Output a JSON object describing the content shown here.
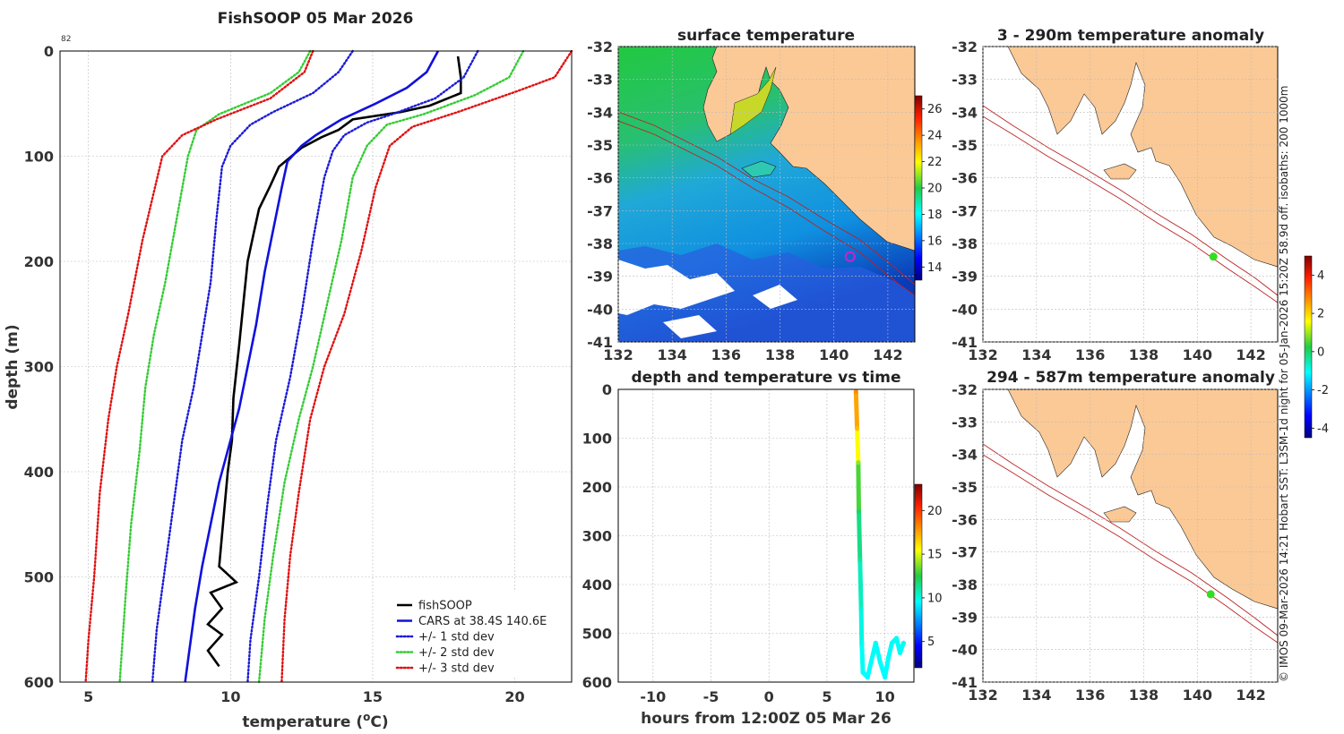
{
  "credit": "© IMOS 09-Mar-2026 14:21 Hobart SST: L3SM-1d night for 05-Jan-2026 15:20Z 58.9d off. isobaths: 200  1000m",
  "colors": {
    "fishsoop": "#000000",
    "cars": "#1010dd",
    "std1": "#1a1ad8",
    "std2": "#33cc33",
    "std3": "#e01010",
    "land": "#fbc996",
    "marker_ring": "#cc22cc",
    "marker_dot": "#33dd22"
  },
  "chart_data": [
    {
      "id": "profile",
      "type": "line",
      "title": "FishSOOP 05 Mar 2026",
      "xlabel": "temperature (°C)",
      "ylabel": "depth (m)",
      "xlim": [
        4,
        22
      ],
      "ylim": [
        600,
        0
      ],
      "xticks": [
        5,
        10,
        15,
        20
      ],
      "yticks": [
        0,
        100,
        200,
        300,
        400,
        500,
        600
      ],
      "annotation": "82",
      "grid": true,
      "legend": "bottom-right",
      "series": [
        {
          "name": "fishSOOP",
          "style": "solid",
          "key": "fishsoop",
          "points": [
            [
              18.0,
              5
            ],
            [
              18.1,
              25
            ],
            [
              18.1,
              40
            ],
            [
              17.0,
              52
            ],
            [
              16.0,
              58
            ],
            [
              14.3,
              65
            ],
            [
              13.8,
              75
            ],
            [
              13.2,
              82
            ],
            [
              12.5,
              92
            ],
            [
              11.7,
              110
            ],
            [
              11.4,
              128
            ],
            [
              11.0,
              150
            ],
            [
              10.8,
              175
            ],
            [
              10.6,
              200
            ],
            [
              10.45,
              240
            ],
            [
              10.3,
              280
            ],
            [
              10.1,
              330
            ],
            [
              10.05,
              370
            ],
            [
              9.9,
              400
            ],
            [
              9.8,
              430
            ],
            [
              9.7,
              460
            ],
            [
              9.6,
              490
            ],
            [
              10.2,
              505
            ],
            [
              9.3,
              515
            ],
            [
              9.7,
              530
            ],
            [
              9.2,
              545
            ],
            [
              9.7,
              555
            ],
            [
              9.2,
              570
            ],
            [
              9.6,
              585
            ]
          ]
        },
        {
          "name": "CARS at 38.4S 140.6E",
          "style": "solid",
          "key": "cars",
          "points": [
            [
              17.3,
              0
            ],
            [
              16.9,
              20
            ],
            [
              16.2,
              35
            ],
            [
              15.1,
              50
            ],
            [
              13.9,
              65
            ],
            [
              13.0,
              80
            ],
            [
              12.5,
              90
            ],
            [
              12.0,
              105
            ],
            [
              11.8,
              130
            ],
            [
              11.5,
              170
            ],
            [
              11.2,
              210
            ],
            [
              10.9,
              260
            ],
            [
              10.6,
              300
            ],
            [
              10.3,
              340
            ],
            [
              10.0,
              370
            ],
            [
              9.6,
              410
            ],
            [
              9.3,
              450
            ],
            [
              9.0,
              490
            ],
            [
              8.75,
              530
            ],
            [
              8.55,
              570
            ],
            [
              8.4,
              600
            ]
          ]
        },
        {
          "name": "+/- 1 std dev",
          "style": "dotted",
          "key": "std1",
          "points": [
            [
              18.7,
              0
            ],
            [
              18.2,
              25
            ],
            [
              17.2,
              45
            ],
            [
              15.7,
              60
            ],
            [
              14.8,
              68
            ],
            [
              14.0,
              80
            ],
            [
              13.6,
              95
            ],
            [
              13.3,
              120
            ],
            [
              12.9,
              180
            ],
            [
              12.5,
              250
            ],
            [
              12.1,
              310
            ],
            [
              11.6,
              370
            ],
            [
              11.3,
              430
            ],
            [
              11.0,
              500
            ],
            [
              10.7,
              560
            ],
            [
              10.6,
              600
            ]
          ]
        },
        {
          "name": "+/- 1 std dev",
          "style": "dotted",
          "key": "std1",
          "nolegend": true,
          "points": [
            [
              14.3,
              0
            ],
            [
              13.8,
              20
            ],
            [
              12.9,
              40
            ],
            [
              11.5,
              58
            ],
            [
              10.7,
              70
            ],
            [
              10.0,
              90
            ],
            [
              9.7,
              110
            ],
            [
              9.5,
              160
            ],
            [
              9.3,
              220
            ],
            [
              9.0,
              270
            ],
            [
              8.7,
              320
            ],
            [
              8.3,
              370
            ],
            [
              8.0,
              430
            ],
            [
              7.7,
              490
            ],
            [
              7.4,
              550
            ],
            [
              7.25,
              600
            ]
          ]
        },
        {
          "name": "+/- 2 std dev",
          "style": "dotted",
          "key": "std2",
          "points": [
            [
              20.3,
              0
            ],
            [
              19.8,
              25
            ],
            [
              18.6,
              42
            ],
            [
              16.8,
              60
            ],
            [
              15.5,
              70
            ],
            [
              14.8,
              90
            ],
            [
              14.3,
              120
            ],
            [
              13.9,
              180
            ],
            [
              13.4,
              240
            ],
            [
              12.9,
              300
            ],
            [
              12.4,
              350
            ],
            [
              11.9,
              410
            ],
            [
              11.5,
              480
            ],
            [
              11.2,
              540
            ],
            [
              11.0,
              600
            ]
          ]
        },
        {
          "name": "+/- 2 std dev",
          "style": "dotted",
          "key": "std2",
          "nolegend": true,
          "points": [
            [
              12.8,
              0
            ],
            [
              12.4,
              20
            ],
            [
              11.4,
              40
            ],
            [
              9.6,
              60
            ],
            [
              8.8,
              75
            ],
            [
              8.5,
              100
            ],
            [
              8.1,
              160
            ],
            [
              7.7,
              220
            ],
            [
              7.3,
              270
            ],
            [
              7.0,
              320
            ],
            [
              6.8,
              380
            ],
            [
              6.5,
              450
            ],
            [
              6.3,
              520
            ],
            [
              6.1,
              600
            ]
          ]
        },
        {
          "name": "+/- 3 std dev",
          "style": "dotted",
          "key": "std3",
          "points": [
            [
              22.0,
              0
            ],
            [
              21.4,
              25
            ],
            [
              20.1,
              38
            ],
            [
              18.0,
              58
            ],
            [
              16.4,
              72
            ],
            [
              15.6,
              90
            ],
            [
              15.1,
              130
            ],
            [
              14.6,
              190
            ],
            [
              14.0,
              250
            ],
            [
              13.3,
              300
            ],
            [
              12.8,
              350
            ],
            [
              12.4,
              420
            ],
            [
              12.1,
              480
            ],
            [
              11.9,
              540
            ],
            [
              11.8,
              600
            ]
          ]
        },
        {
          "name": "+/- 3 std dev",
          "style": "dotted",
          "key": "std3",
          "nolegend": true,
          "points": [
            [
              12.9,
              0
            ],
            [
              12.6,
              20
            ],
            [
              11.4,
              45
            ],
            [
              9.5,
              65
            ],
            [
              8.3,
              80
            ],
            [
              7.6,
              100
            ],
            [
              6.9,
              180
            ],
            [
              6.4,
              250
            ],
            [
              6.0,
              300
            ],
            [
              5.7,
              350
            ],
            [
              5.4,
              420
            ],
            [
              5.2,
              500
            ],
            [
              5.0,
              560
            ],
            [
              4.9,
              600
            ]
          ]
        }
      ]
    },
    {
      "id": "sst",
      "type": "heatmap",
      "title": "surface temperature",
      "xlim": [
        132,
        143
      ],
      "ylim": [
        -41,
        -32
      ],
      "xticks": [
        132,
        134,
        136,
        138,
        140,
        142
      ],
      "yticks": [
        -32,
        -33,
        -34,
        -35,
        -36,
        -37,
        -38,
        -39,
        -40,
        -41
      ],
      "colorbar": {
        "min": 13,
        "max": 27,
        "ticks": [
          14,
          16,
          18,
          20,
          22,
          24,
          26
        ]
      },
      "marker": {
        "lon": 140.6,
        "lat": -38.4
      }
    },
    {
      "id": "timeseries",
      "type": "scatter",
      "title": "depth and temperature vs time",
      "xlabel": "hours from 12:00Z 05 Mar 26",
      "xlim": [
        -13,
        12.5
      ],
      "ylim": [
        600,
        0
      ],
      "xticks": [
        -10,
        -5,
        0,
        5,
        10
      ],
      "yticks": [
        0,
        100,
        200,
        300,
        400,
        500,
        600
      ],
      "colorbar": {
        "min": 2,
        "max": 23,
        "ticks": [
          5,
          10,
          15,
          20
        ]
      },
      "points": [
        [
          7.5,
          5,
          18
        ],
        [
          7.6,
          80,
          17
        ],
        [
          7.7,
          150,
          14
        ],
        [
          7.75,
          250,
          12
        ],
        [
          7.85,
          350,
          11
        ],
        [
          7.95,
          450,
          10.2
        ],
        [
          8.0,
          520,
          9.8
        ],
        [
          8.1,
          580,
          9.6
        ],
        [
          8.5,
          590,
          9.5
        ],
        [
          8.8,
          560,
          9.6
        ],
        [
          9.2,
          520,
          9.7
        ],
        [
          9.6,
          560,
          9.6
        ],
        [
          10.0,
          590,
          9.5
        ],
        [
          10.3,
          550,
          9.6
        ],
        [
          10.6,
          520,
          9.7
        ],
        [
          11.0,
          510,
          9.7
        ],
        [
          11.3,
          540,
          9.6
        ],
        [
          11.6,
          520,
          9.7
        ]
      ]
    },
    {
      "id": "anom_shallow",
      "type": "heatmap",
      "title": "3 - 290m temperature anomaly",
      "xlim": [
        132,
        143
      ],
      "ylim": [
        -41,
        -32
      ],
      "xticks": [
        132,
        134,
        136,
        138,
        140,
        142
      ],
      "yticks": [
        -32,
        -33,
        -34,
        -35,
        -36,
        -37,
        -38,
        -39,
        -40,
        -41
      ],
      "marker": {
        "lon": 140.6,
        "lat": -38.4
      }
    },
    {
      "id": "anom_deep",
      "type": "heatmap",
      "title": "294 - 587m temperature anomaly",
      "xlim": [
        132,
        143
      ],
      "ylim": [
        -41,
        -32
      ],
      "xticks": [
        132,
        134,
        136,
        138,
        140,
        142
      ],
      "yticks": [
        -32,
        -33,
        -34,
        -35,
        -36,
        -37,
        -38,
        -39,
        -40,
        -41
      ],
      "marker": {
        "lon": 140.5,
        "lat": -38.3
      }
    },
    {
      "id": "anom_colorbar",
      "type": "heatmap",
      "colorbar": {
        "min": -4.5,
        "max": 5,
        "ticks": [
          4,
          2,
          0,
          -2,
          -4
        ]
      }
    }
  ]
}
